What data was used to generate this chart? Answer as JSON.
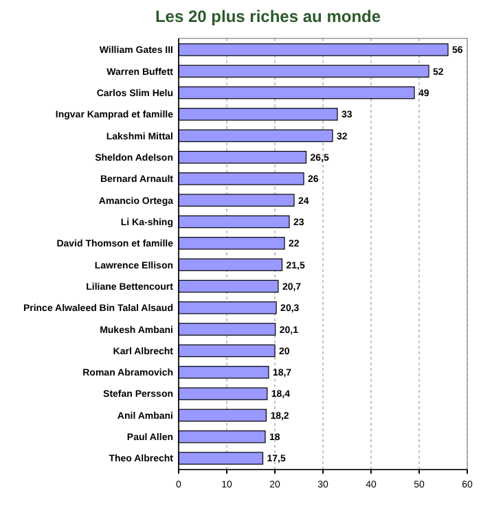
{
  "chart_data": {
    "type": "bar",
    "orientation": "horizontal",
    "title": "Les 20 plus riches au monde",
    "categories": [
      "William Gates III",
      "Warren Buffett",
      "Carlos Slim Helu",
      "Ingvar Kamprad et famille",
      "Lakshmi Mittal",
      "Sheldon Adelson",
      "Bernard Arnault",
      "Amancio Ortega",
      "Li Ka-shing",
      "David Thomson et famille",
      "Lawrence Ellison",
      "Liliane Bettencourt",
      "Prince Alwaleed Bin Talal Alsaud",
      "Mukesh Ambani",
      "Karl Albrecht",
      "Roman Abramovich",
      "Stefan Persson",
      "Anil Ambani",
      "Paul Allen",
      "Theo Albrecht"
    ],
    "values": [
      56,
      52,
      49,
      33,
      32,
      26.5,
      26,
      24,
      23,
      22,
      21.5,
      20.7,
      20.3,
      20.1,
      20,
      18.7,
      18.4,
      18.2,
      18,
      17.5
    ],
    "value_labels": [
      "56",
      "52",
      "49",
      "33",
      "32",
      "26,5",
      "26",
      "24",
      "23",
      "22",
      "21,5",
      "20,7",
      "20,3",
      "20,1",
      "20",
      "18,7",
      "18,4",
      "18,2",
      "18",
      "17,5"
    ],
    "color": "#9999ff",
    "xlim": [
      0,
      60
    ],
    "xticks": [
      0,
      10,
      20,
      30,
      40,
      50,
      60
    ],
    "grid": "x"
  }
}
